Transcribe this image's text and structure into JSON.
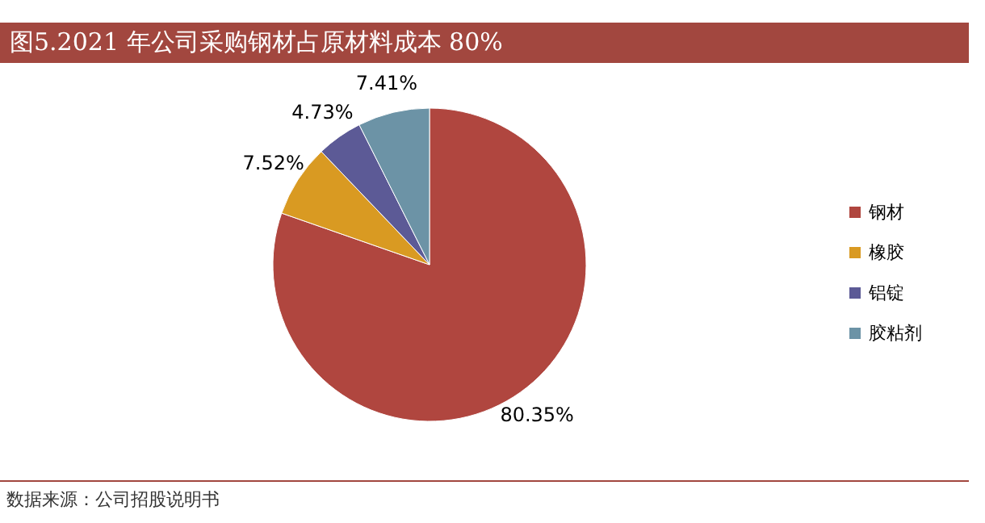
{
  "chart_data": {
    "type": "pie",
    "title": "图5.2021 年公司采购钢材占原材料成本 80%",
    "categories": [
      "钢材",
      "橡胶",
      "铝锭",
      "胶粘剂"
    ],
    "values": [
      80.35,
      7.52,
      4.73,
      7.41
    ],
    "colors": [
      "#b0463f",
      "#d99a22",
      "#5c5a96",
      "#6c93a6"
    ],
    "value_labels": [
      "80.35%",
      "7.52%",
      "4.73%",
      "7.41%"
    ],
    "legend": "right",
    "annotations": [
      "数据来源：公司招股说明书"
    ]
  }
}
